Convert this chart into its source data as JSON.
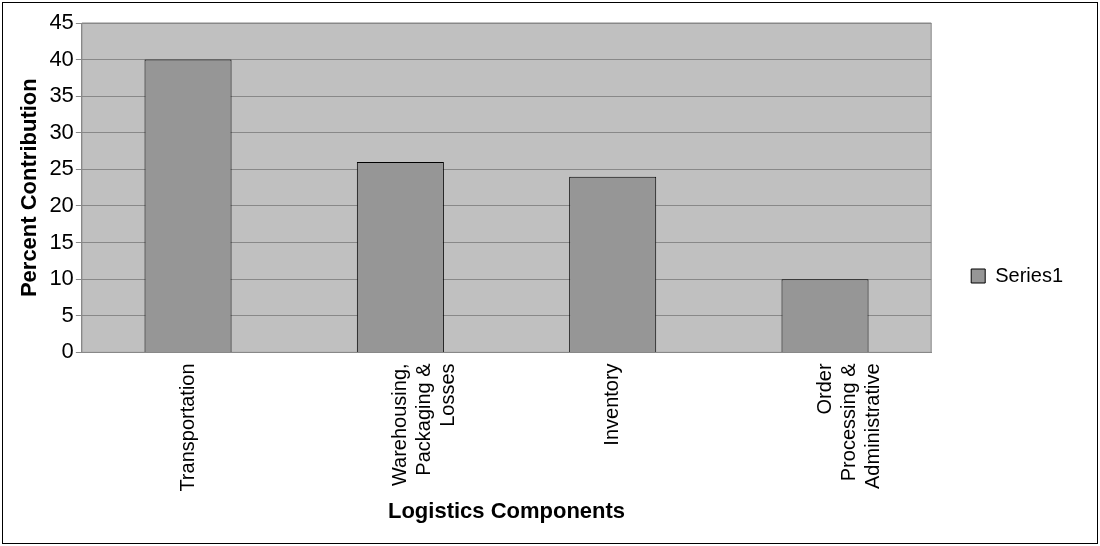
{
  "chart_data": {
    "type": "bar",
    "xlabel": "Logistics Components",
    "ylabel": "Percent Contribution",
    "categories": [
      "Transportation",
      "Warehousing,\nPackaging &\nLosses",
      "Inventory",
      "Order\nProcessing &\nAdministrative"
    ],
    "series": [
      {
        "name": "Series1",
        "color": "#969696",
        "values": [
          40,
          26,
          24,
          10
        ]
      }
    ],
    "ylim": [
      0,
      45
    ],
    "yticks": [
      0,
      5,
      10,
      15,
      20,
      25,
      30,
      35,
      40,
      45
    ],
    "grid": "y",
    "legend": "right"
  }
}
